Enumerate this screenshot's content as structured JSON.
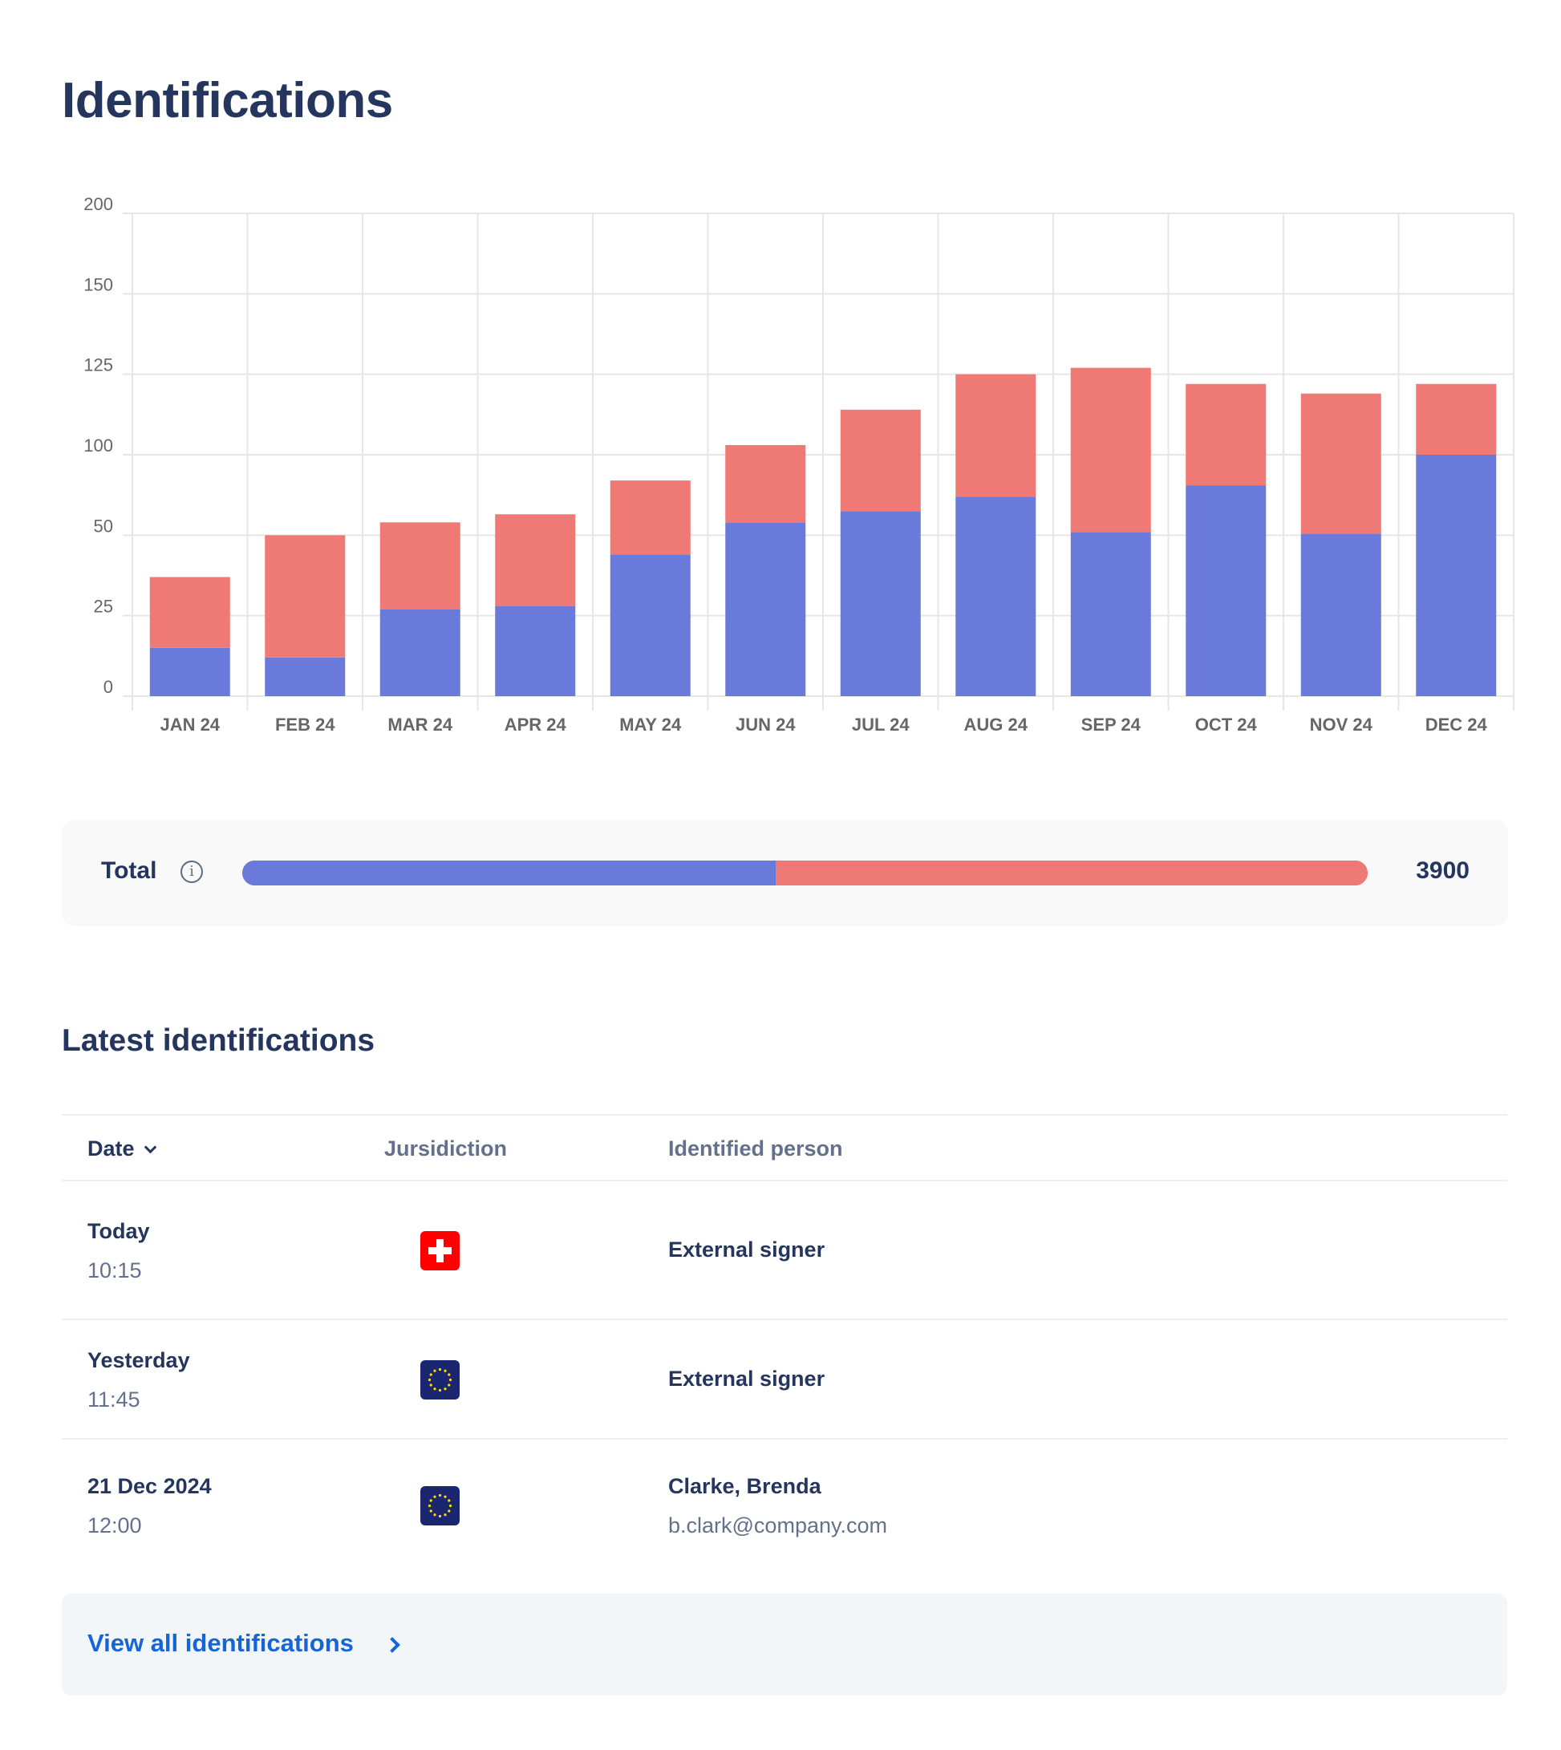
{
  "page": {
    "title": "Identifications"
  },
  "chart_data": {
    "type": "bar",
    "stacked": true,
    "categories": [
      "JAN 24",
      "FEB 24",
      "MAR 24",
      "APR 24",
      "MAY 24",
      "JUN 24",
      "JUL 24",
      "AUG 24",
      "SEP 24",
      "OCT 24",
      "NOV 24",
      "DEC 24"
    ],
    "series": [
      {
        "color": "#6a7ada",
        "values": [
          15,
          12,
          27,
          28,
          44,
          58,
          65,
          74,
          52,
          81,
          51,
          100
        ]
      },
      {
        "color": "#ef7975",
        "values": [
          22,
          38,
          31,
          35,
          40,
          45,
          49,
          51,
          75,
          41,
          68,
          22
        ]
      }
    ],
    "yticks": [
      0,
      25,
      50,
      100,
      125,
      150,
      200
    ],
    "ylim": [
      0,
      200
    ],
    "grid": true,
    "xlabel": "",
    "ylabel": "",
    "title": ""
  },
  "total": {
    "label": "Total",
    "value": "3900",
    "icon": "info-icon",
    "segments": [
      {
        "color": "#6a7ada",
        "fraction": 0.474
      },
      {
        "color": "#ef7975",
        "fraction": 0.526
      }
    ]
  },
  "latest": {
    "title": "Latest identifications",
    "columns": {
      "date": "Date",
      "jurisdiction": "Jursidiction",
      "person": "Identified person"
    },
    "rows": [
      {
        "date": "Today",
        "time": "10:15",
        "flag": "switzerland-flag",
        "name": "External signer",
        "email": ""
      },
      {
        "date": "Yesterday",
        "time": "11:45",
        "flag": "eu-flag",
        "name": "External signer",
        "email": ""
      },
      {
        "date": "21 Dec 2024",
        "time": "12:00",
        "flag": "eu-flag",
        "name": "Clarke, Brenda",
        "email": "b.clark@company.com"
      }
    ],
    "view_all": "View all identifications"
  }
}
